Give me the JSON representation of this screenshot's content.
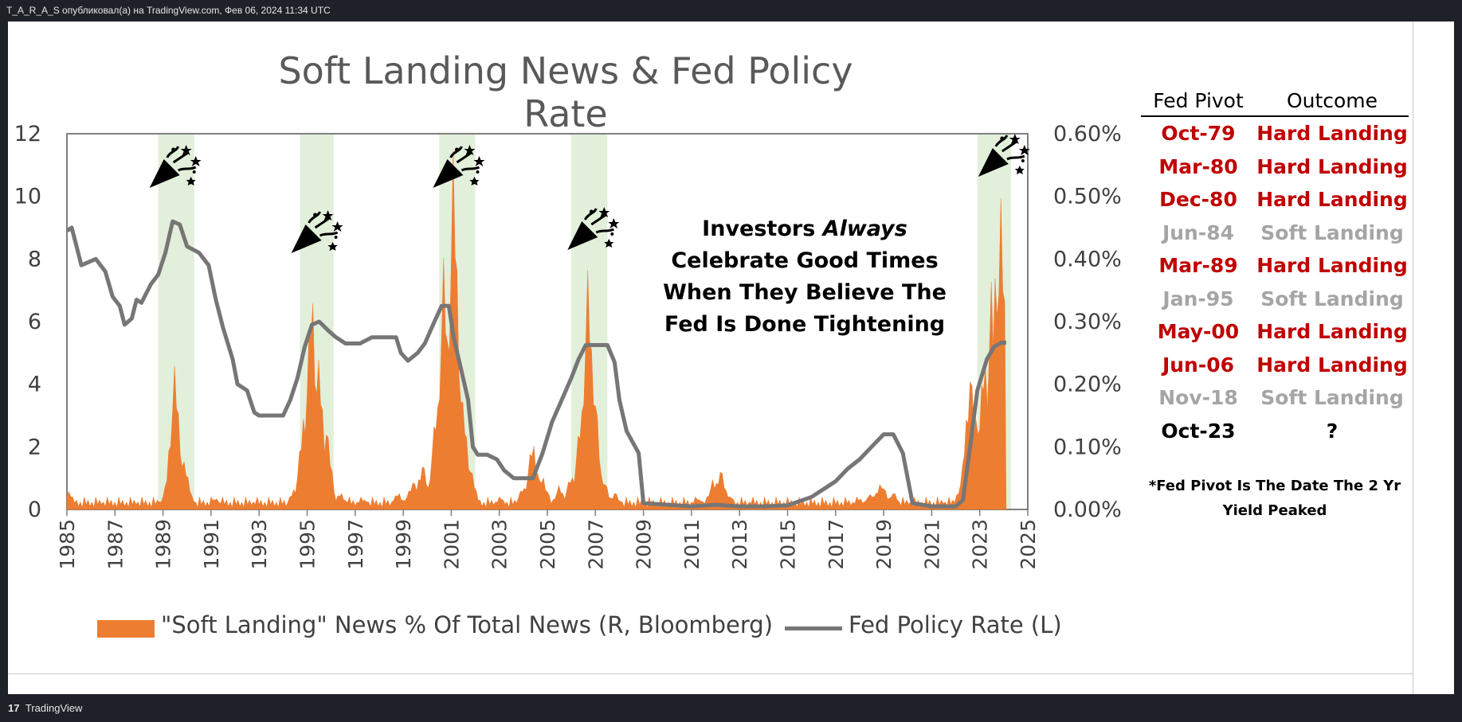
{
  "header": {
    "publish_line": "T_A_R_A_S опубликовал(а) на TradingView.com, Фев 06, 2024 11:34 UTC"
  },
  "footer": {
    "brand": "TradingView",
    "logo": "17"
  },
  "chart_data": {
    "type": "area",
    "title": "Soft Landing News & Fed Policy Rate",
    "x_range": [
      1985,
      2025
    ],
    "x_ticks": [
      "1985",
      "1987",
      "1989",
      "1991",
      "1993",
      "1995",
      "1997",
      "1999",
      "2001",
      "2003",
      "2005",
      "2007",
      "2009",
      "2011",
      "2013",
      "2015",
      "2017",
      "2019",
      "2021",
      "2023",
      "2025"
    ],
    "y_left_range": [
      0,
      12
    ],
    "y_left_ticks": [
      "0",
      "2",
      "4",
      "6",
      "8",
      "10",
      "12"
    ],
    "y_right_range": [
      0,
      0.6
    ],
    "y_right_ticks": [
      "0.00%",
      "0.10%",
      "0.20%",
      "0.30%",
      "0.40%",
      "0.50%",
      "0.60%"
    ],
    "legend": {
      "position": "bottom",
      "news_label": "\"Soft Landing\" News % Of Total News (R, Bloomberg)",
      "rate_label": "Fed Policy Rate (L)"
    },
    "colors": {
      "news": "#ed7d31",
      "rate": "#767676",
      "shade": "#e2efda"
    },
    "shaded_periods": [
      [
        1988.8,
        1990.3
      ],
      [
        1994.7,
        1996.1
      ],
      [
        2000.5,
        2002.0
      ],
      [
        2006.0,
        2007.5
      ],
      [
        2022.9,
        2024.3
      ]
    ],
    "celebration_markers": [
      1989.5,
      1995.4,
      2001.3,
      2006.9,
      2024.0
    ],
    "annotation": [
      "Investors",
      "Always",
      "Celebrate Good Times",
      "When They Believe The",
      "Fed Is Done Tightening"
    ],
    "series": [
      {
        "name": "Fed Policy Rate (L)",
        "axis": "left",
        "points": [
          [
            1985.0,
            8.9
          ],
          [
            1985.2,
            9.0
          ],
          [
            1985.4,
            8.4
          ],
          [
            1985.6,
            7.8
          ],
          [
            1985.9,
            7.9
          ],
          [
            1986.2,
            8.0
          ],
          [
            1986.6,
            7.6
          ],
          [
            1986.9,
            6.8
          ],
          [
            1987.2,
            6.5
          ],
          [
            1987.4,
            5.9
          ],
          [
            1987.7,
            6.1
          ],
          [
            1987.9,
            6.7
          ],
          [
            1988.1,
            6.6
          ],
          [
            1988.5,
            7.2
          ],
          [
            1988.8,
            7.5
          ],
          [
            1989.1,
            8.2
          ],
          [
            1989.4,
            9.2
          ],
          [
            1989.7,
            9.1
          ],
          [
            1990.0,
            8.4
          ],
          [
            1990.5,
            8.2
          ],
          [
            1990.9,
            7.8
          ],
          [
            1991.2,
            6.7
          ],
          [
            1991.5,
            5.8
          ],
          [
            1991.9,
            4.8
          ],
          [
            1992.1,
            4.0
          ],
          [
            1992.5,
            3.8
          ],
          [
            1992.8,
            3.1
          ],
          [
            1993.0,
            3.0
          ],
          [
            1993.5,
            3.0
          ],
          [
            1994.0,
            3.0
          ],
          [
            1994.3,
            3.5
          ],
          [
            1994.6,
            4.2
          ],
          [
            1994.9,
            5.2
          ],
          [
            1995.2,
            5.9
          ],
          [
            1995.5,
            6.0
          ],
          [
            1995.9,
            5.7
          ],
          [
            1996.2,
            5.5
          ],
          [
            1996.6,
            5.3
          ],
          [
            1997.0,
            5.3
          ],
          [
            1997.2,
            5.3
          ],
          [
            1997.7,
            5.5
          ],
          [
            1998.2,
            5.5
          ],
          [
            1998.7,
            5.5
          ],
          [
            1998.9,
            5.0
          ],
          [
            1999.2,
            4.75
          ],
          [
            1999.6,
            5.0
          ],
          [
            1999.9,
            5.3
          ],
          [
            2000.3,
            6.0
          ],
          [
            2000.6,
            6.5
          ],
          [
            2000.9,
            6.5
          ],
          [
            2001.1,
            5.5
          ],
          [
            2001.4,
            4.5
          ],
          [
            2001.7,
            3.5
          ],
          [
            2001.9,
            2.0
          ],
          [
            2002.1,
            1.75
          ],
          [
            2002.5,
            1.75
          ],
          [
            2002.9,
            1.6
          ],
          [
            2003.2,
            1.25
          ],
          [
            2003.6,
            1.0
          ],
          [
            2004.0,
            1.0
          ],
          [
            2004.4,
            1.0
          ],
          [
            2004.8,
            1.8
          ],
          [
            2005.2,
            2.8
          ],
          [
            2005.6,
            3.5
          ],
          [
            2006.0,
            4.2
          ],
          [
            2006.3,
            4.8
          ],
          [
            2006.6,
            5.25
          ],
          [
            2007.0,
            5.25
          ],
          [
            2007.5,
            5.25
          ],
          [
            2007.8,
            4.7
          ],
          [
            2008.0,
            3.5
          ],
          [
            2008.3,
            2.5
          ],
          [
            2008.8,
            1.8
          ],
          [
            2009.0,
            0.2
          ],
          [
            2010.0,
            0.15
          ],
          [
            2011.0,
            0.1
          ],
          [
            2012.0,
            0.15
          ],
          [
            2013.0,
            0.1
          ],
          [
            2014.0,
            0.1
          ],
          [
            2015.0,
            0.13
          ],
          [
            2016.0,
            0.4
          ],
          [
            2017.0,
            0.9
          ],
          [
            2017.5,
            1.3
          ],
          [
            2018.0,
            1.6
          ],
          [
            2018.5,
            2.0
          ],
          [
            2019.0,
            2.4
          ],
          [
            2019.4,
            2.4
          ],
          [
            2019.8,
            1.8
          ],
          [
            2020.2,
            0.2
          ],
          [
            2021.0,
            0.1
          ],
          [
            2022.0,
            0.1
          ],
          [
            2022.3,
            0.3
          ],
          [
            2022.6,
            2.0
          ],
          [
            2022.9,
            3.8
          ],
          [
            2023.3,
            4.8
          ],
          [
            2023.6,
            5.2
          ],
          [
            2023.9,
            5.33
          ],
          [
            2024.1,
            5.33
          ]
        ]
      },
      {
        "name": "\"Soft Landing\" News % Of Total News (R, Bloomberg)",
        "axis": "right",
        "peaks": [
          [
            1985.1,
            0.03
          ],
          [
            1986.4,
            0.01
          ],
          [
            1987.8,
            0.01
          ],
          [
            1989.0,
            0.02
          ],
          [
            1989.3,
            0.07
          ],
          [
            1989.5,
            0.24
          ],
          [
            1989.9,
            0.08
          ],
          [
            1991.2,
            0.02
          ],
          [
            1992.8,
            0.01
          ],
          [
            1994.5,
            0.04
          ],
          [
            1994.9,
            0.18
          ],
          [
            1995.2,
            0.39
          ],
          [
            1995.5,
            0.25
          ],
          [
            1995.8,
            0.14
          ],
          [
            1996.4,
            0.03
          ],
          [
            1997.3,
            0.02
          ],
          [
            1998.8,
            0.03
          ],
          [
            1999.4,
            0.05
          ],
          [
            1999.8,
            0.08
          ],
          [
            2000.4,
            0.18
          ],
          [
            2000.7,
            0.42
          ],
          [
            2001.1,
            0.6
          ],
          [
            2001.5,
            0.18
          ],
          [
            2001.8,
            0.07
          ],
          [
            2003.0,
            0.02
          ],
          [
            2004.0,
            0.04
          ],
          [
            2004.4,
            0.12
          ],
          [
            2004.8,
            0.06
          ],
          [
            2005.5,
            0.04
          ],
          [
            2006.0,
            0.06
          ],
          [
            2006.4,
            0.16
          ],
          [
            2006.7,
            0.4
          ],
          [
            2006.9,
            0.25
          ],
          [
            2007.3,
            0.06
          ],
          [
            2007.8,
            0.03
          ],
          [
            2009.5,
            0.01
          ],
          [
            2011.3,
            0.02
          ],
          [
            2011.9,
            0.05
          ],
          [
            2012.2,
            0.07
          ],
          [
            2012.5,
            0.03
          ],
          [
            2013.5,
            0.01
          ],
          [
            2015.0,
            0.01
          ],
          [
            2017.5,
            0.01
          ],
          [
            2018.0,
            0.02
          ],
          [
            2018.5,
            0.03
          ],
          [
            2018.9,
            0.05
          ],
          [
            2019.4,
            0.03
          ],
          [
            2020.0,
            0.01
          ],
          [
            2021.5,
            0.01
          ],
          [
            2022.3,
            0.06
          ],
          [
            2022.6,
            0.24
          ],
          [
            2022.9,
            0.18
          ],
          [
            2023.2,
            0.27
          ],
          [
            2023.5,
            0.38
          ],
          [
            2023.7,
            0.46
          ],
          [
            2023.9,
            0.52
          ],
          [
            2024.1,
            0.3
          ]
        ]
      }
    ]
  },
  "pivot_table": {
    "headers": [
      "Fed Pivot",
      "Outcome"
    ],
    "rows": [
      {
        "date": "Oct-79",
        "outcome": "Hard Landing",
        "color": "#c00000"
      },
      {
        "date": "Mar-80",
        "outcome": "Hard Landing",
        "color": "#c00000"
      },
      {
        "date": "Dec-80",
        "outcome": "Hard Landing",
        "color": "#c00000"
      },
      {
        "date": "Jun-84",
        "outcome": "Soft Landing",
        "color": "#a5a5a5"
      },
      {
        "date": "Mar-89",
        "outcome": "Hard Landing",
        "color": "#c00000"
      },
      {
        "date": "Jan-95",
        "outcome": "Soft Landing",
        "color": "#a5a5a5"
      },
      {
        "date": "May-00",
        "outcome": "Hard Landing",
        "color": "#c00000"
      },
      {
        "date": "Jun-06",
        "outcome": "Hard Landing",
        "color": "#c00000"
      },
      {
        "date": "Nov-18",
        "outcome": "Soft Landing",
        "color": "#a5a5a5"
      },
      {
        "date": "Oct-23",
        "outcome": "?",
        "color": "#000000"
      }
    ],
    "note": [
      "*Fed Pivot Is The Date The 2 Yr",
      "Yield Peaked"
    ]
  }
}
